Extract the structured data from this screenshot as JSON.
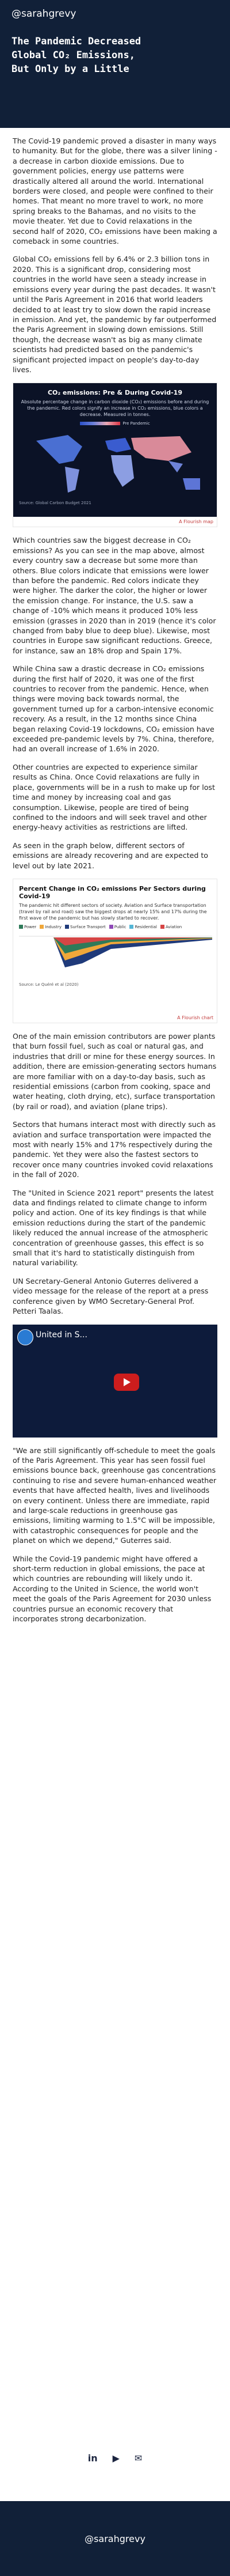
{
  "header": {
    "handle": "@sarahgrevy",
    "title_lines": [
      "The Pandemic Decreased",
      "Global CO₂ Emissions,",
      "But Only by a Little"
    ]
  },
  "paragraphs": [
    "The Covid-19 pandemic proved a disaster in many ways to humanity. But for the globe, there was a silver lining - a decrease in carbon dioxide emissions. Due to government policies, energy use patterns were drastically altered all around the world. International borders were closed, and people were confined to their homes. That meant no more travel to work, no more spring breaks to the Bahamas, and no visits to the movie theater. Yet due to Covid relaxations in the second half of 2020, CO₂ emissions have been making a comeback in some countries.",
    "Global CO₂ emissions fell by 6.4% or 2.3 billion tons in 2020. This is a significant drop, considering most countries in the world have seen a steady increase in emissions every year during the past decades. It wasn't until the Paris Agreement in 2016 that world leaders decided to at least try to slow down the rapid increase in emission. And yet, the pandemic by far outperformed the Paris Agreement in slowing down emissions. Still though, the decrease wasn't as big as many climate scientists had predicted based on the pandemic's significant projected impact on people's day-to-day lives."
  ],
  "figure1": {
    "title": "CO₂ emissions: Pre & During Covid-19",
    "subtitle": "Absolute percentage change in carbon dioxide (CO₂) emissions before and during the pandemic. Red colors signify an increase in CO₂ emissions, blue colors a decrease. Measured in tonnes.",
    "legend_label": "Pre Pandemic",
    "source": "Source: Global Carbon Budget 2021",
    "credit": "A Flourish map"
  },
  "paragraphs2": [
    "Which countries saw the biggest decrease in CO₂ emissions? As you can see in the map above, almost every country saw a decrease but some more than others. Blue colors indicate that emissions were lower than before the pandemic. Red colors indicate they were higher. The darker the color, the higher or lower the emission change. For instance, the U.S. saw a change of -10% which means it produced 10% less emission (grasses in 2020 than in 2019 (hence it's color changed from baby blue to deep blue). Likewise, most countries in Europe saw significant reductions. Greece, for instance, saw an 18% drop and Spain 17%.",
    "While China saw a drastic decrease in CO₂ emissions during the first half of 2020, it was one of the first countries to recover from the pandemic. Hence, when things were moving back towards normal, the government turned up for a carbon-intensive economic recovery. As a result, in the 12 months since China began relaxing Covid-19 lockdowns, CO₂ emission have exceeded pre-pandemic levels by 7%. China, therefore, had an overall increase of 1.6% in 2020.",
    "Other countries are expected to experience similar results as China. Once Covid relaxations are fully in place, governments will be in a rush to make up for lost time and money by increasing coal and gas consumption. Likewise, people are tired of being confined to the indoors and will seek travel and other energy-heavy activities as restrictions are lifted.",
    "As seen in the graph below, different sectors of emissions are already recovering and are expected to level out by late 2021."
  ],
  "figure2": {
    "title": "Percent Change in CO₂ emissions Per Sectors during Covid-19",
    "subtitle": "The pandemic hit different sectors of society. Aviation and Surface transportation (travel by rail and road) saw the biggest drops at nearly 15% and 17% during the first wave of the pandemic but has slowly started to recover.",
    "legend": [
      "Power",
      "Industry",
      "Surface Transport",
      "Public",
      "Residential",
      "Aviation"
    ],
    "colors": [
      "#2f7a59",
      "#f0a73a",
      "#1f3a7a",
      "#8f4ab7",
      "#54b6d6",
      "#d64545"
    ],
    "source": "Source: Le Quéré et al (2020)",
    "credit": "A Flourish chart"
  },
  "paragraphs3": [
    "One of the main emission contributors are power plants that burn fossil fuel, such as coal or natural gas, and industries that drill or mine for these energy sources. In addition, there are emission-generating sectors humans are more familiar with on a day-to-day basis, such as residential emissions (carbon from cooking, space and water heating, cloth drying, etc), surface transportation (by rail or road), and aviation (plane trips).",
    "Sectors that humans interact most with directly such as aviation and surface transportation were impacted the most with nearly 15% and 17% respectively during the pandemic. Yet they were also the fastest sectors to recover once many countries invoked covid relaxations in the fall of 2020.",
    "The \"United in Science 2021 report\" presents the latest data and findings related to climate change to inform policy and action. One of its key findings is that while emission reductions during the start of the pandemic likely reduced the annual increase of the atmospheric concentration of greenhouse gasses, this effect is so small that it's hard to statistically distinguish from natural variability.",
    "UN Secretary-General Antonio Guterres delivered a video message for the release of the report at a press conference given by WMO Secretary-General Prof. Petteri Taalas."
  ],
  "video": {
    "title": "United in S..."
  },
  "paragraphs4": [
    "\"We are still significantly off-schedule to meet the goals of the Paris Agreement. This year has seen fossil fuel emissions bounce back, greenhouse gas concentrations continuing to rise and severe human-enhanced weather events that have affected health, lives and livelihoods on every continent. Unless there are immediate, rapid and large-scale reductions in greenhouse gas emissions, limiting warming to 1.5°C will be impossible, with catastrophic consequences for people and the planet on which we depend,\" Guterres said.",
    "While the Covid-19 pandemic might have offered a short-term reduction in global emissions, the pace at which countries are rebounding will likely undo it. According to the United in Science, the world won't meet the goals of the Paris Agreement for 2030 unless countries pursue an economic recovery that incorporates strong decarbonization."
  ],
  "socials": {
    "linkedin": "in",
    "youtube": "▶",
    "email": "✉"
  },
  "footer": {
    "handle": "@sarahgrevy"
  }
}
